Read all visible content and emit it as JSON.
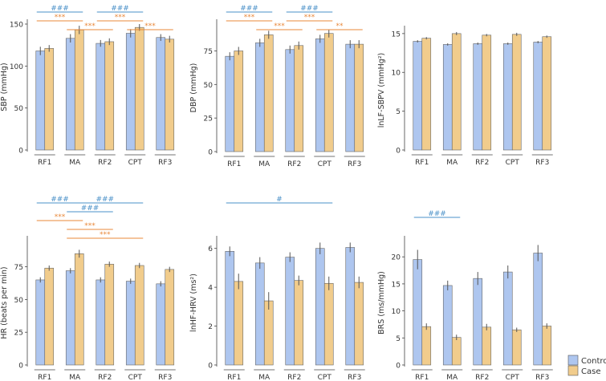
{
  "colors": {
    "control": "#aec6ef",
    "case": "#f1cc8c",
    "control_sig": "#4a90c8",
    "case_sig": "#e8883a",
    "err": "#555555",
    "axis": "#444444"
  },
  "categories": [
    "RF1",
    "MA",
    "RF2",
    "CPT",
    "RF3"
  ],
  "legend": {
    "control": "Control",
    "case": "Case"
  },
  "chart_data": [
    {
      "type": "bar",
      "ylabel": "SBP (mmHg)",
      "ylim": [
        0,
        150
      ],
      "yticks": [
        0,
        50,
        100,
        150
      ],
      "categories": [
        "RF1",
        "MA",
        "RF2",
        "CPT",
        "RF3"
      ],
      "series": [
        {
          "name": "Control",
          "values": [
            118,
            133,
            127,
            139,
            134
          ],
          "err": [
            5,
            5,
            4,
            5,
            4
          ]
        },
        {
          "name": "Case",
          "values": [
            121,
            143,
            129,
            146,
            132
          ],
          "err": [
            4,
            5,
            4,
            4,
            4
          ]
        }
      ],
      "sig": [
        {
          "label": "###",
          "from": 0,
          "to": 1,
          "group": "control",
          "row": 0
        },
        {
          "label": "###",
          "from": 2,
          "to": 3,
          "group": "control",
          "row": 0
        },
        {
          "label": "***",
          "from": 0,
          "to": 1,
          "group": "case",
          "row": 1
        },
        {
          "label": "***",
          "from": 1,
          "to": 2,
          "group": "case",
          "row": 2
        },
        {
          "label": "***",
          "from": 2,
          "to": 3,
          "group": "case",
          "row": 1
        },
        {
          "label": "***",
          "from": 3,
          "to": 4,
          "group": "case",
          "row": 2
        }
      ]
    },
    {
      "type": "bar",
      "ylabel": "DBP (mmHg)",
      "ylim": [
        0,
        95
      ],
      "yticks": [
        0,
        25,
        50,
        75
      ],
      "categories": [
        "RF1",
        "MA",
        "RF2",
        "CPT",
        "RF3"
      ],
      "series": [
        {
          "name": "Control",
          "values": [
            71,
            81,
            76,
            84,
            80
          ],
          "err": [
            3,
            3,
            3,
            3,
            3
          ]
        },
        {
          "name": "Case",
          "values": [
            75,
            87,
            79,
            88,
            80
          ],
          "err": [
            3,
            3,
            3,
            3,
            3
          ]
        }
      ],
      "sig": [
        {
          "label": "###",
          "from": 0,
          "to": 1,
          "group": "control",
          "row": 0
        },
        {
          "label": "###",
          "from": 2,
          "to": 3,
          "group": "control",
          "row": 0
        },
        {
          "label": "***",
          "from": 0,
          "to": 1,
          "group": "case",
          "row": 1
        },
        {
          "label": "***",
          "from": 1,
          "to": 2,
          "group": "case",
          "row": 2
        },
        {
          "label": "***",
          "from": 2,
          "to": 3,
          "group": "case",
          "row": 1
        },
        {
          "label": "**",
          "from": 3,
          "to": 4,
          "group": "case",
          "row": 2
        }
      ]
    },
    {
      "type": "bar",
      "ylabel": "lnLF-SBPV (mmHg²)",
      "ylim": [
        0,
        15.4
      ],
      "yticks": [
        0,
        5,
        10,
        15
      ],
      "categories": [
        "RF1",
        "MA",
        "RF2",
        "CPT",
        "RF3"
      ],
      "series": [
        {
          "name": "Control",
          "values": [
            14.0,
            13.6,
            13.7,
            13.7,
            13.9
          ],
          "err": [
            0.15,
            0.15,
            0.15,
            0.15,
            0.15
          ]
        },
        {
          "name": "Case",
          "values": [
            14.4,
            15.0,
            14.8,
            14.9,
            14.6
          ],
          "err": [
            0.15,
            0.2,
            0.15,
            0.2,
            0.15
          ]
        }
      ],
      "sig": []
    },
    {
      "type": "bar",
      "ylabel": "HR (beats per min)",
      "ylim": [
        0,
        95
      ],
      "yticks": [
        0,
        25,
        50,
        75
      ],
      "categories": [
        "RF1",
        "MA",
        "RF2",
        "CPT",
        "RF3"
      ],
      "series": [
        {
          "name": "Control",
          "values": [
            65,
            72,
            65,
            64,
            62
          ],
          "err": [
            2,
            2,
            2,
            2,
            2
          ]
        },
        {
          "name": "Case",
          "values": [
            74,
            85,
            77,
            76,
            73
          ],
          "err": [
            2,
            3,
            2,
            2,
            2
          ]
        }
      ],
      "sig": [
        {
          "label": "###",
          "from": 0,
          "to": 1,
          "group": "control",
          "row": 0
        },
        {
          "label": "###",
          "from": 1,
          "to": 2,
          "group": "control",
          "row": 1
        },
        {
          "label": "###",
          "from": 1,
          "to": 3,
          "group": "control",
          "row": 0
        },
        {
          "label": "***",
          "from": 0,
          "to": 1,
          "group": "case",
          "row": 2
        },
        {
          "label": "***",
          "from": 1,
          "to": 2,
          "group": "case",
          "row": 3
        },
        {
          "label": "***",
          "from": 1,
          "to": 3,
          "group": "case",
          "row": 4
        }
      ]
    },
    {
      "type": "bar",
      "ylabel": "lnHF-HRV (ms²)",
      "ylim": [
        0,
        6.4
      ],
      "yticks": [
        0,
        2,
        4,
        6
      ],
      "categories": [
        "RF1",
        "MA",
        "RF2",
        "CPT",
        "RF3"
      ],
      "series": [
        {
          "name": "Control",
          "values": [
            5.85,
            5.25,
            5.55,
            6.0,
            6.05
          ],
          "err": [
            0.25,
            0.3,
            0.25,
            0.3,
            0.25
          ]
        },
        {
          "name": "Case",
          "values": [
            4.3,
            3.3,
            4.35,
            4.2,
            4.25
          ],
          "err": [
            0.4,
            0.45,
            0.25,
            0.35,
            0.3
          ]
        }
      ],
      "sig": [
        {
          "label": "#",
          "from": 0,
          "to": 3,
          "group": "control",
          "row": 0
        }
      ]
    },
    {
      "type": "bar",
      "ylabel": "BRS (ms/mmHg)",
      "ylim": [
        0,
        23
      ],
      "yticks": [
        0,
        5,
        10,
        15,
        20
      ],
      "categories": [
        "RF1",
        "MA",
        "RF2",
        "CPT",
        "RF3"
      ],
      "series": [
        {
          "name": "Control",
          "values": [
            19.5,
            14.7,
            16.0,
            17.2,
            20.7
          ],
          "err": [
            1.8,
            0.9,
            1.2,
            1.2,
            1.5
          ]
        },
        {
          "name": "Case",
          "values": [
            7.1,
            5.1,
            7.0,
            6.5,
            7.2
          ],
          "err": [
            0.6,
            0.5,
            0.6,
            0.4,
            0.5
          ]
        }
      ],
      "sig": [
        {
          "label": "###",
          "from": 0,
          "to": 1,
          "group": "control",
          "row": 0
        }
      ]
    }
  ]
}
